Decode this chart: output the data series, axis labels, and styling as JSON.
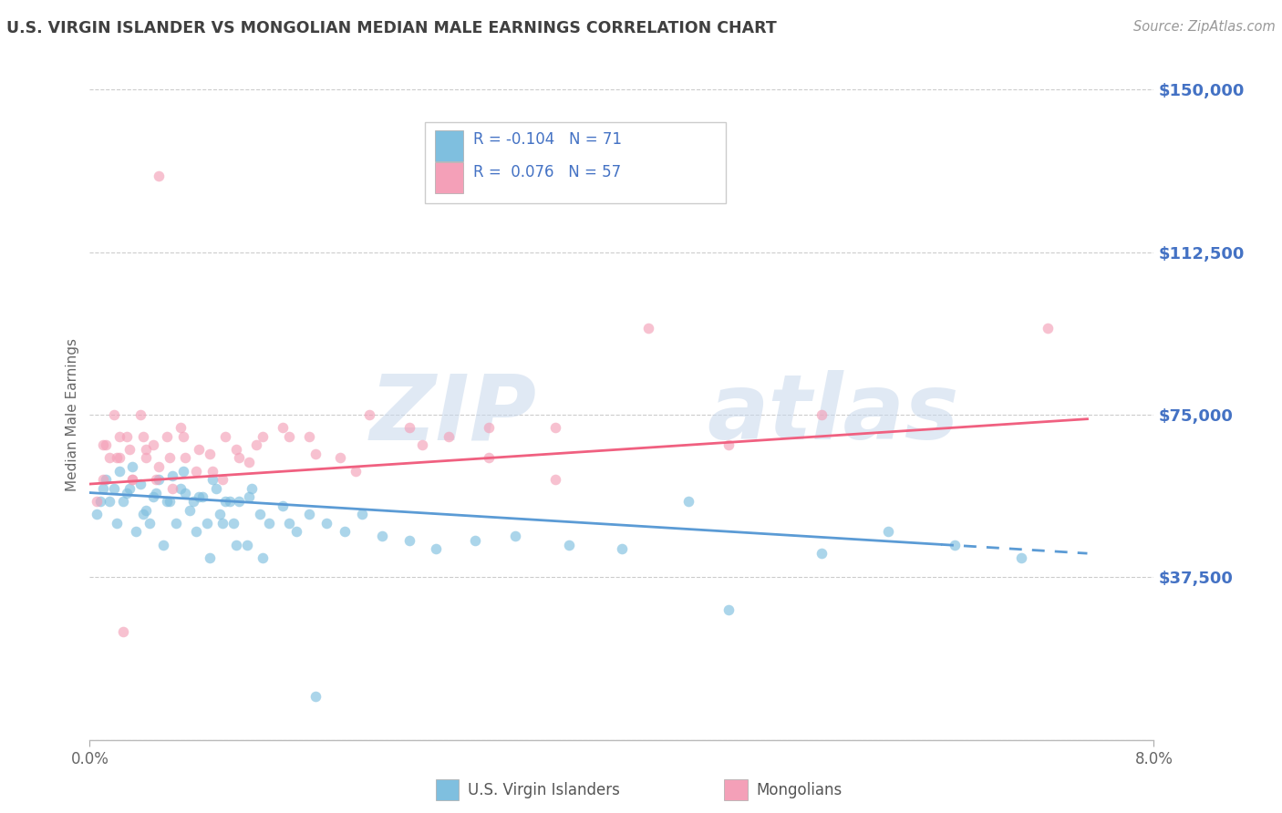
{
  "title": "U.S. VIRGIN ISLANDER VS MONGOLIAN MEDIAN MALE EARNINGS CORRELATION CHART",
  "source": "Source: ZipAtlas.com",
  "ylabel": "Median Male Earnings",
  "yticks": [
    0,
    37500,
    75000,
    112500,
    150000
  ],
  "ytick_labels": [
    "",
    "$37,500",
    "$75,000",
    "$112,500",
    "$150,000"
  ],
  "xmin": 0.0,
  "xmax": 8.0,
  "ymin": 0,
  "ymax": 150000,
  "watermark_zip": "ZIP",
  "watermark_atlas": "atlas",
  "legend_r1": "R = -0.104",
  "legend_n1": "N = 71",
  "legend_r2": "R =  0.076",
  "legend_n2": "N = 57",
  "blue_color": "#7fbfdf",
  "pink_color": "#f4a0b8",
  "blue_line_color": "#5b9bd5",
  "pink_line_color": "#f06080",
  "ytick_color": "#4472c4",
  "title_color": "#404040",
  "source_color": "#999999",
  "blue_scatter_x": [
    0.08,
    0.12,
    0.18,
    0.22,
    0.28,
    0.32,
    0.38,
    0.42,
    0.48,
    0.52,
    0.58,
    0.62,
    0.68,
    0.72,
    0.78,
    0.82,
    0.88,
    0.92,
    0.98,
    1.02,
    1.08,
    1.12,
    1.18,
    1.22,
    1.28,
    1.35,
    1.45,
    1.55,
    1.65,
    1.78,
    1.92,
    2.05,
    2.2,
    2.4,
    2.6,
    2.9,
    3.2,
    3.6,
    4.0,
    4.5,
    4.8,
    5.5,
    6.0,
    6.5,
    7.0,
    0.05,
    0.1,
    0.15,
    0.2,
    0.25,
    0.3,
    0.35,
    0.4,
    0.45,
    0.5,
    0.55,
    0.6,
    0.65,
    0.7,
    0.75,
    0.8,
    0.85,
    0.9,
    0.95,
    1.0,
    1.05,
    1.1,
    1.2,
    1.3,
    1.5,
    1.7
  ],
  "blue_scatter_y": [
    55000,
    60000,
    58000,
    62000,
    57000,
    63000,
    59000,
    53000,
    56000,
    60000,
    55000,
    61000,
    58000,
    57000,
    55000,
    56000,
    50000,
    60000,
    52000,
    55000,
    50000,
    55000,
    45000,
    58000,
    52000,
    50000,
    54000,
    48000,
    52000,
    50000,
    48000,
    52000,
    47000,
    46000,
    44000,
    46000,
    47000,
    45000,
    44000,
    55000,
    30000,
    43000,
    48000,
    45000,
    42000,
    52000,
    58000,
    55000,
    50000,
    55000,
    58000,
    48000,
    52000,
    50000,
    57000,
    45000,
    55000,
    50000,
    62000,
    53000,
    48000,
    56000,
    42000,
    58000,
    50000,
    55000,
    45000,
    56000,
    42000,
    50000,
    10000
  ],
  "pink_scatter_x": [
    0.05,
    0.1,
    0.15,
    0.18,
    0.22,
    0.28,
    0.32,
    0.38,
    0.42,
    0.48,
    0.52,
    0.58,
    0.62,
    0.68,
    0.72,
    0.82,
    0.92,
    1.02,
    1.12,
    1.25,
    1.45,
    1.65,
    1.88,
    2.1,
    2.4,
    2.7,
    3.0,
    3.5,
    0.1,
    0.2,
    0.3,
    0.4,
    0.5,
    0.6,
    0.7,
    0.8,
    0.9,
    1.0,
    1.1,
    1.2,
    1.3,
    1.5,
    1.7,
    2.0,
    2.5,
    3.0,
    3.5,
    4.2,
    5.5,
    7.2,
    4.8,
    0.12,
    0.22,
    0.32,
    0.42,
    0.52,
    0.25
  ],
  "pink_scatter_y": [
    55000,
    68000,
    65000,
    75000,
    65000,
    70000,
    60000,
    75000,
    65000,
    68000,
    63000,
    70000,
    58000,
    72000,
    65000,
    67000,
    62000,
    70000,
    65000,
    68000,
    72000,
    70000,
    65000,
    75000,
    72000,
    70000,
    65000,
    72000,
    60000,
    65000,
    67000,
    70000,
    60000,
    65000,
    70000,
    62000,
    66000,
    60000,
    67000,
    64000,
    70000,
    70000,
    66000,
    62000,
    68000,
    72000,
    60000,
    95000,
    75000,
    95000,
    68000,
    68000,
    70000,
    60000,
    67000,
    130000,
    25000
  ],
  "blue_trend_x": [
    0.0,
    7.5
  ],
  "blue_trend_y": [
    57000,
    43000
  ],
  "blue_trend_solid_end": 6.4,
  "pink_trend_x": [
    0.0,
    7.5
  ],
  "pink_trend_y": [
    59000,
    74000
  ]
}
